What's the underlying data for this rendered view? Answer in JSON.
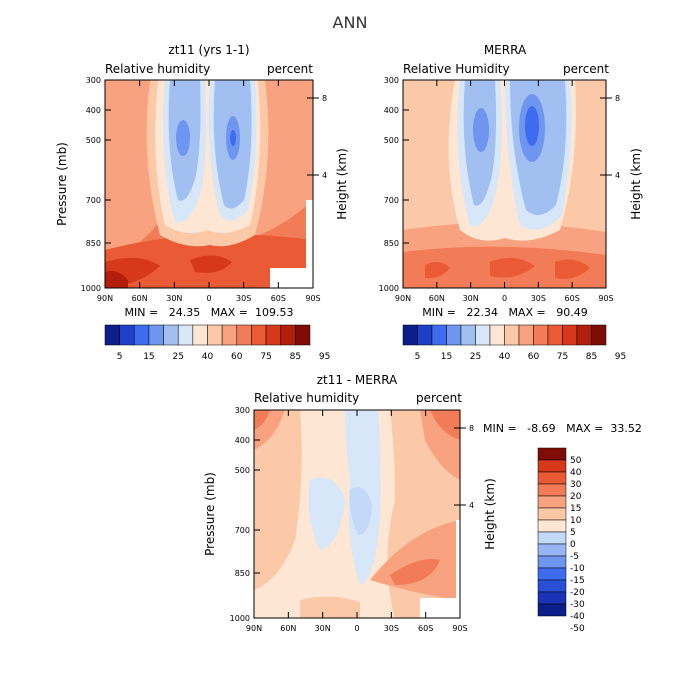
{
  "figure": {
    "title": "ANN"
  },
  "palettes": {
    "abs": [
      "#0b1e8a",
      "#1e40c8",
      "#3d6cf0",
      "#6e95f0",
      "#a2bff2",
      "#d7e6f8",
      "#fde6d3",
      "#fbc8a8",
      "#f8a280",
      "#f27c57",
      "#ea5a34",
      "#d73819",
      "#b31d0c",
      "#7f0d05"
    ],
    "diff": [
      "#0b1e8a",
      "#1a33b8",
      "#2a4fd6",
      "#3d6cf0",
      "#6e95f0",
      "#96b5f2",
      "#c4d9f7",
      "#fde6d3",
      "#fbc8a8",
      "#f8a280",
      "#f27c57",
      "#ea5a34",
      "#d73819",
      "#7f0d05"
    ]
  },
  "chart_data": [
    {
      "type": "heatmap",
      "title": "zt11 (yrs 1-1)",
      "subtitle_left": "Relative humidity",
      "subtitle_right": "percent",
      "ylabel": "Pressure (mb)",
      "ylabel_right": "Height (km)",
      "x_ticks": [
        "90N",
        "60N",
        "30N",
        "0",
        "30S",
        "60S",
        "90S"
      ],
      "y_ticks": [
        "300",
        "400",
        "500",
        "700",
        "850",
        "1000"
      ],
      "y_ticks_right": [
        "8",
        "4"
      ],
      "min": 24.35,
      "max": 109.53,
      "stats_text": "MIN =   24.35   MAX =  109.53",
      "colorbar": {
        "labels": [
          "5",
          "15",
          "25",
          "40",
          "60",
          "75",
          "85",
          "95"
        ]
      }
    },
    {
      "type": "heatmap",
      "title": "MERRA",
      "subtitle_left": "Relative Humidity",
      "subtitle_right": "percent",
      "ylabel": "Pressure (mb)",
      "ylabel_right": "Height (km)",
      "x_ticks": [
        "90N",
        "60N",
        "30N",
        "0",
        "30S",
        "60S",
        "90S"
      ],
      "y_ticks": [
        "300",
        "400",
        "500",
        "700",
        "850",
        "1000"
      ],
      "y_ticks_right": [
        "8",
        "4"
      ],
      "min": 22.34,
      "max": 90.49,
      "stats_text": "MIN =   22.34   MAX =   90.49",
      "colorbar": {
        "labels": [
          "5",
          "15",
          "25",
          "40",
          "60",
          "75",
          "85",
          "95"
        ]
      }
    },
    {
      "type": "heatmap",
      "title": "zt11 - MERRA",
      "subtitle_left": "Relative humidity",
      "subtitle_right": "percent",
      "ylabel": "Pressure (mb)",
      "ylabel_right": "Height (km)",
      "x_ticks": [
        "90N",
        "60N",
        "30N",
        "0",
        "30S",
        "60S",
        "90S"
      ],
      "y_ticks": [
        "300",
        "400",
        "500",
        "700",
        "850",
        "1000"
      ],
      "y_ticks_right": [
        "8",
        "4"
      ],
      "min": -8.69,
      "max": 33.52,
      "stats_text": "MIN =   -8.69   MAX =  33.52",
      "colorbar": {
        "labels": [
          "50",
          "40",
          "30",
          "20",
          "15",
          "10",
          "5",
          "0",
          "-5",
          "-10",
          "-15",
          "-20",
          "-30",
          "-40",
          "-50"
        ]
      }
    }
  ]
}
